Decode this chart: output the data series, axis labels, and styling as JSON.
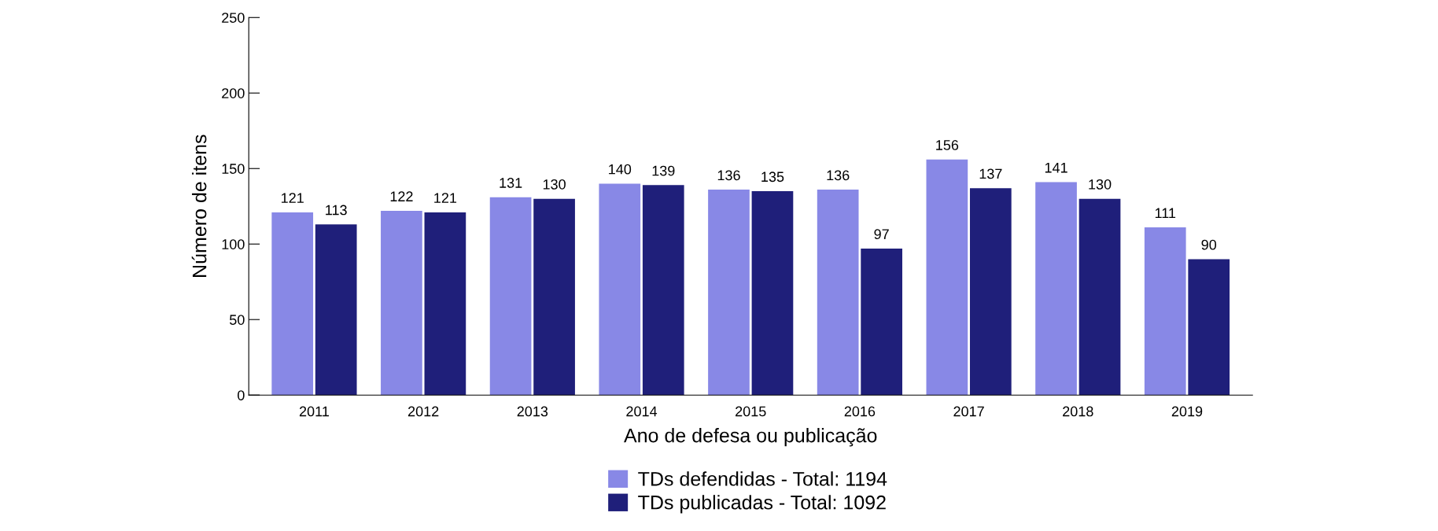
{
  "chart_data": {
    "type": "bar",
    "xlabel": "Ano de defesa ou publicação",
    "ylabel": "Número de itens",
    "categories": [
      "2011",
      "2012",
      "2013",
      "2014",
      "2015",
      "2016",
      "2017",
      "2018",
      "2019"
    ],
    "series": [
      {
        "name": "TDs defendidas - Total: 1194",
        "color": "#8888e6",
        "values": [
          121,
          122,
          131,
          140,
          136,
          136,
          156,
          141,
          111
        ]
      },
      {
        "name": "TDs publicadas - Total: 1092",
        "color": "#1f1f7a",
        "values": [
          113,
          121,
          130,
          139,
          135,
          97,
          137,
          130,
          90
        ]
      }
    ],
    "ylim": [
      0,
      250
    ],
    "yticks": [
      0,
      50,
      100,
      150,
      200,
      250
    ],
    "grid": false,
    "legend": "bottom",
    "data_labels": true
  }
}
